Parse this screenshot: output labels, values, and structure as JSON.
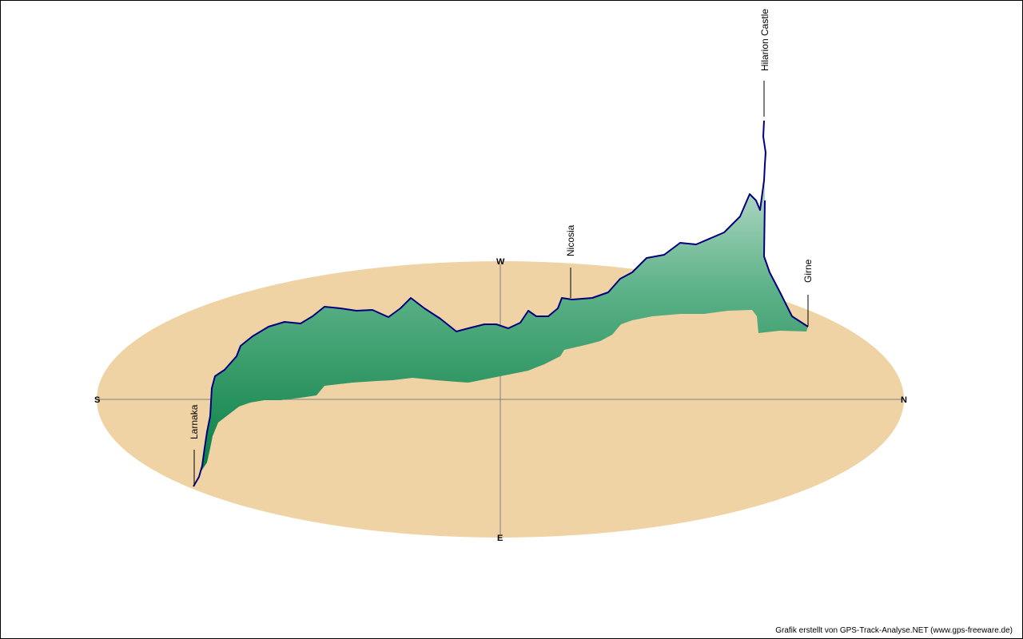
{
  "directions": {
    "south": "S",
    "north": "N",
    "west": "W",
    "east": "E"
  },
  "waypoints": {
    "larnaka": "Larnaka",
    "nicosia": "Nicosia",
    "hilarion": "Hilarion Castle",
    "girne": "Girne"
  },
  "credit": "Grafik erstellt von GPS-Track-Analyse.NET (www.gps-freeware.de)",
  "colors": {
    "ground": "#efd3a5",
    "track": "#00007f",
    "fill_dark": "#007a3d",
    "fill_light": "#e6f1ea",
    "axis": "#7f7f7f"
  }
}
